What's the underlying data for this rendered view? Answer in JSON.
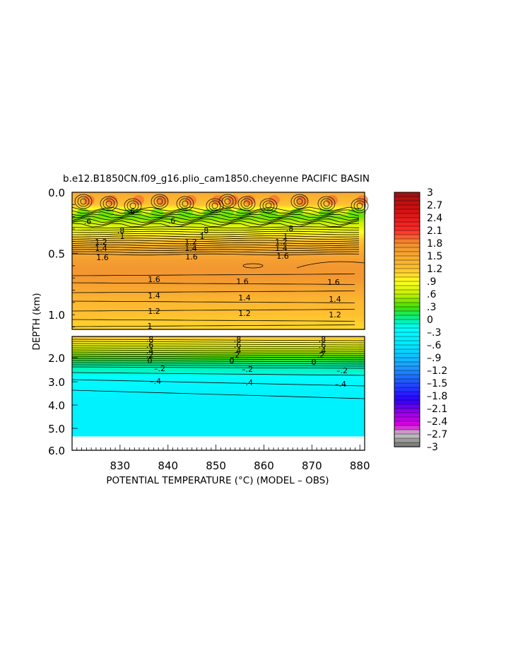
{
  "chart_data": {
    "type": "heatmap",
    "title": "b.e12.B1850CN.f09_g16.plio_cam1850.cheyenne PACIFIC BASIN",
    "xlabel": "POTENTIAL TEMPERATURE (°C) (MODEL – OBS)",
    "ylabel": "DEPTH (km)",
    "x_tick_labels": [
      "830",
      "840",
      "850",
      "860",
      "870",
      "880"
    ],
    "xlim": [
      820,
      881
    ],
    "upper_panel": {
      "ylim": [
        0.0,
        1.12
      ],
      "y_tick_labels": [
        "0.0",
        "0.5",
        "1.0"
      ],
      "profile_depths": [
        0.0,
        0.1,
        0.2,
        0.3,
        0.4,
        0.5,
        0.6,
        0.7,
        0.8,
        0.9,
        1.0,
        1.1
      ],
      "profile_values": [
        1.5,
        1.2,
        0.4,
        0.8,
        1.2,
        1.5,
        1.7,
        1.7,
        1.5,
        1.3,
        1.2,
        1.1
      ],
      "contour_labels": [
        ".6",
        ".6",
        ".6",
        ".8",
        ".8",
        ".8",
        "1",
        "1",
        "1",
        "1.2",
        "1.2",
        "1.2",
        "1.4",
        "1.4",
        "1.4",
        "1.6",
        "1.6",
        "1.6",
        "1.6",
        "1.6",
        "1.6",
        "1.4",
        "1.4",
        "1.4",
        "1.2",
        "1.2",
        "1.2",
        "1"
      ]
    },
    "lower_panel": {
      "ylim": [
        1.12,
        6.0
      ],
      "y_tick_labels": [
        "2.0",
        "3.0",
        "4.0",
        "5.0",
        "6.0"
      ],
      "data_bottom_depth": 5.35,
      "profile_depths": [
        1.15,
        1.4,
        1.7,
        2.0,
        2.3,
        2.6,
        3.0,
        3.5,
        4.0,
        5.35
      ],
      "profile_values": [
        1.2,
        0.9,
        0.6,
        0.3,
        0.0,
        -0.1,
        -0.3,
        -0.4,
        -0.45,
        -0.45
      ],
      "contour_labels": [
        ".8",
        ".8",
        ".8",
        ".6",
        ".6",
        ".6",
        ".4",
        ".4",
        ".4",
        ".2",
        ".2",
        ".2",
        "0",
        "0",
        "0",
        "-.2",
        "-.2",
        "-.2",
        "-.4",
        "-.4",
        "-.4"
      ]
    },
    "colorbar": {
      "range": [
        -3,
        3
      ],
      "step": 0.1,
      "tick_labels": [
        "3",
        "2.7",
        "2.4",
        "2.1",
        "1.8",
        "1.5",
        "1.2",
        ".9",
        ".6",
        ".3",
        "0",
        "–.3",
        "–.6",
        "–.9",
        "–1.2",
        "–1.5",
        "–1.8",
        "–2.1",
        "–2.4",
        "–2.7",
        "–3"
      ],
      "stops": [
        {
          "v": -3.0,
          "c": "#707070"
        },
        {
          "v": -2.7,
          "c": "#c8c8c8"
        },
        {
          "v": -2.5,
          "c": "#e000e0"
        },
        {
          "v": -2.2,
          "c": "#9a00e8"
        },
        {
          "v": -1.9,
          "c": "#2a00ff"
        },
        {
          "v": -1.5,
          "c": "#2050ff"
        },
        {
          "v": -1.1,
          "c": "#1aa0ff"
        },
        {
          "v": -0.6,
          "c": "#00e8ff"
        },
        {
          "v": -0.2,
          "c": "#00ffff"
        },
        {
          "v": 0.0,
          "c": "#00f0a0"
        },
        {
          "v": 0.3,
          "c": "#40e000"
        },
        {
          "v": 0.6,
          "c": "#c8f000"
        },
        {
          "v": 0.9,
          "c": "#ffff20"
        },
        {
          "v": 1.2,
          "c": "#ffc030"
        },
        {
          "v": 1.8,
          "c": "#f09030"
        },
        {
          "v": 2.1,
          "c": "#ff2a2a"
        },
        {
          "v": 2.6,
          "c": "#d01010"
        },
        {
          "v": 3.0,
          "c": "#a01010"
        }
      ]
    }
  }
}
